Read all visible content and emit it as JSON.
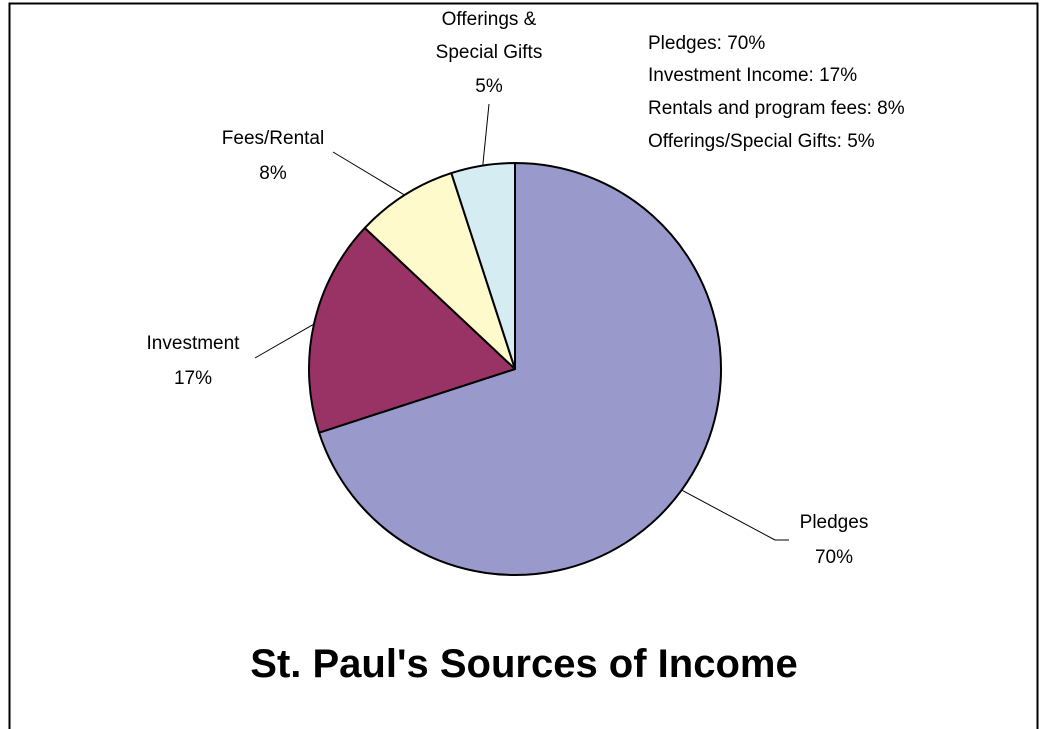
{
  "chart_data": {
    "type": "pie",
    "title": "St. Paul's Sources of Income",
    "slices": [
      {
        "label_lines": [
          "Pledges"
        ],
        "pct_label": "70%",
        "value": 70,
        "color": "#9999CC"
      },
      {
        "label_lines": [
          "Investment"
        ],
        "pct_label": "17%",
        "value": 17,
        "color": "#993366"
      },
      {
        "label_lines": [
          "Fees/Rental"
        ],
        "pct_label": "8%",
        "value": 8,
        "color": "#FFFACC"
      },
      {
        "label_lines": [
          "Offerings &",
          "Special Gifts"
        ],
        "pct_label": "5%",
        "value": 5,
        "color": "#D4ECF2"
      }
    ],
    "annotation": [
      "Pledges: 70%",
      "Investment Income: 17%",
      "Rentals and program fees: 8%",
      "Offerings/Special Gifts: 5%"
    ]
  }
}
